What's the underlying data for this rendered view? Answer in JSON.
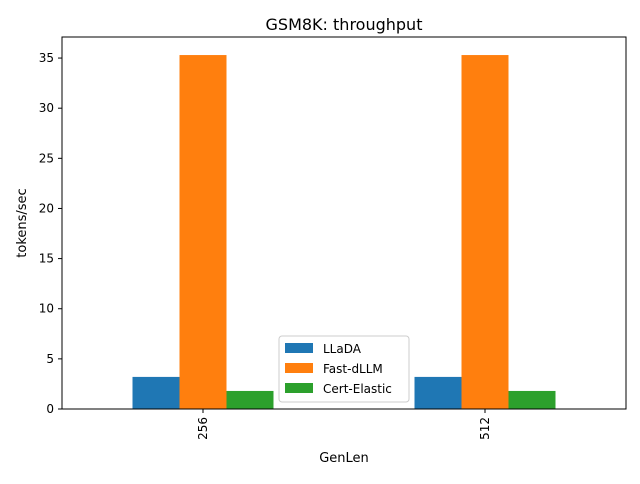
{
  "chart_data": {
    "type": "bar",
    "title": "GSM8K: throughput",
    "xlabel": "GenLen",
    "ylabel": "tokens/sec",
    "categories": [
      "256",
      "512"
    ],
    "series": [
      {
        "name": "LLaDA",
        "values": [
          3.2,
          3.2
        ],
        "color": "#1f77b4"
      },
      {
        "name": "Fast-dLLM",
        "values": [
          35.3,
          35.3
        ],
        "color": "#ff7f0e"
      },
      {
        "name": "Cert-Elastic",
        "values": [
          1.8,
          1.8
        ],
        "color": "#2ca02c"
      }
    ],
    "ylim": [
      0,
      37.1
    ],
    "yticks": [
      0,
      5,
      10,
      15,
      20,
      25,
      30,
      35
    ],
    "grid": false,
    "legend_position": "lower center"
  }
}
